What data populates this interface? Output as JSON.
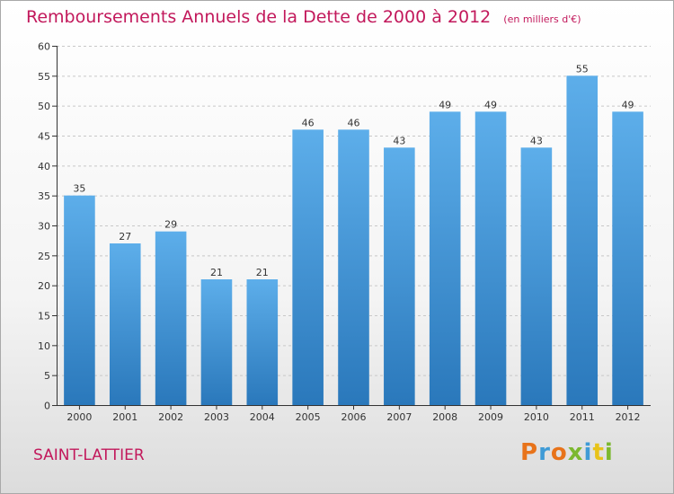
{
  "header": {
    "title": "Remboursements Annuels de la Dette de 2000 à 2012",
    "unit": "(en milliers d'€)"
  },
  "footer": {
    "commune": "SAINT-LATTIER",
    "logo": "Proxiti"
  },
  "colors": {
    "title": "#c2185b",
    "bar_top": "#5daeea",
    "bar_bottom": "#2a78bb",
    "logo_letters": [
      "#e8731a",
      "#3f9bd6",
      "#e8731a",
      "#7cb82f",
      "#3f9bd6",
      "#e8c31a",
      "#7cb82f"
    ]
  },
  "chart_data": {
    "type": "bar",
    "categories": [
      "2000",
      "2001",
      "2002",
      "2003",
      "2004",
      "2005",
      "2006",
      "2007",
      "2008",
      "2009",
      "2010",
      "2011",
      "2012"
    ],
    "values": [
      35,
      27,
      29,
      21,
      21,
      46,
      46,
      43,
      49,
      49,
      43,
      55,
      49
    ],
    "title": "Remboursements Annuels de la Dette de 2000 à 2012",
    "xlabel": "",
    "ylabel": "",
    "ylim": [
      0,
      60
    ],
    "yticks": [
      0,
      5,
      10,
      15,
      20,
      25,
      30,
      35,
      40,
      45,
      50,
      55,
      60
    ],
    "grid": true
  }
}
